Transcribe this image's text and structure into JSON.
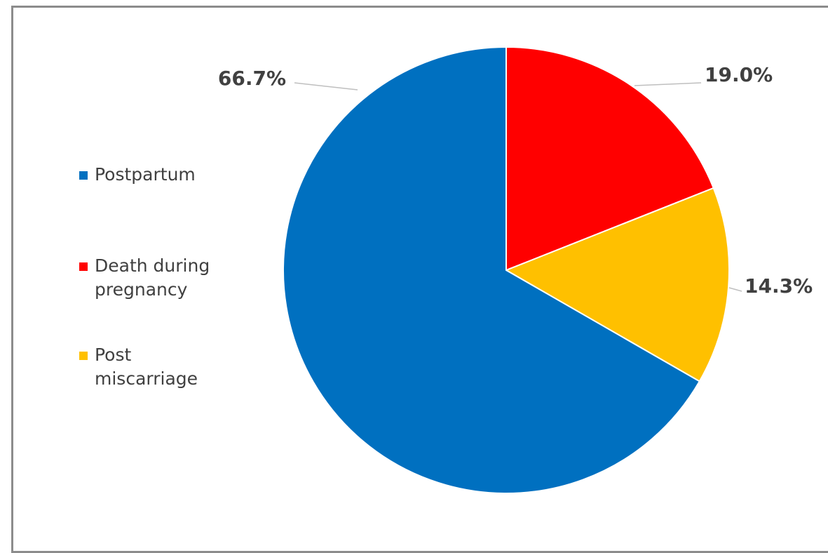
{
  "chart_data": {
    "type": "pie",
    "title": "",
    "slices": [
      {
        "name": "Death during pregnancy",
        "value": 19.0,
        "label": "19.0%",
        "color": "#ff0000"
      },
      {
        "name": "Post miscarriage",
        "value": 14.3,
        "label": "14.3%",
        "color": "#ffc000"
      },
      {
        "name": "Postpartum",
        "value": 66.7,
        "label": "66.7%",
        "color": "#0070c0"
      }
    ],
    "legend": {
      "placement": "left",
      "order": [
        "Postpartum",
        "Death during pregnancy",
        "Post miscarriage"
      ]
    }
  }
}
